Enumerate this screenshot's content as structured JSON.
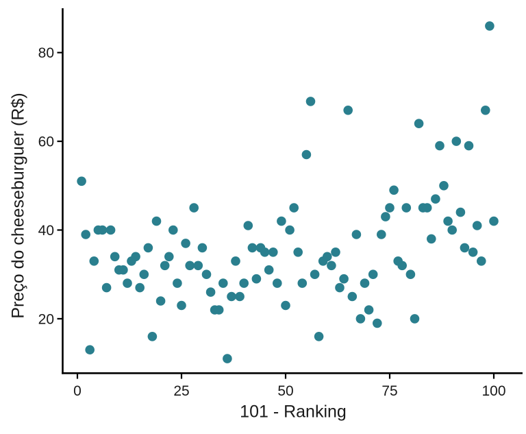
{
  "chart_data": {
    "type": "scatter",
    "title": "",
    "xlabel": "101 - Ranking",
    "ylabel": "Preço do cheeseburguer (R$)",
    "x_ticks": [
      0,
      25,
      50,
      75,
      100
    ],
    "y_ticks": [
      20,
      40,
      60,
      80
    ],
    "xlim": [
      -4,
      107
    ],
    "ylim": [
      8,
      90
    ],
    "grid": "off",
    "legend": "none",
    "point_color": "#2a7f8e",
    "axis_color": "#000000",
    "label_color": "#1a1a1a",
    "x": [
      1,
      2,
      3,
      4,
      5,
      6,
      7,
      8,
      9,
      10,
      11,
      12,
      13,
      14,
      15,
      16,
      17,
      18,
      19,
      20,
      21,
      22,
      23,
      24,
      25,
      26,
      27,
      28,
      29,
      30,
      31,
      32,
      33,
      34,
      35,
      36,
      37,
      38,
      39,
      40,
      41,
      42,
      43,
      44,
      45,
      46,
      47,
      48,
      49,
      50,
      51,
      52,
      53,
      54,
      55,
      56,
      57,
      58,
      59,
      60,
      61,
      62,
      63,
      64,
      65,
      66,
      67,
      68,
      69,
      70,
      71,
      72,
      73,
      74,
      75,
      76,
      77,
      78,
      79,
      80,
      81,
      82,
      83,
      84,
      85,
      86,
      87,
      88,
      89,
      90,
      91,
      92,
      93,
      94,
      95,
      96,
      97,
      98,
      99,
      100
    ],
    "y": [
      51,
      39,
      13,
      33,
      40,
      40,
      27,
      40,
      34,
      31,
      31,
      28,
      33,
      34,
      27,
      30,
      36,
      16,
      42,
      24,
      32,
      34,
      40,
      28,
      23,
      37,
      32,
      45,
      32,
      36,
      30,
      26,
      22,
      22,
      28,
      11,
      25,
      33,
      25,
      28,
      41,
      36,
      29,
      36,
      35,
      31,
      35,
      28,
      42,
      23,
      40,
      45,
      35,
      28,
      57,
      69,
      30,
      16,
      33,
      34,
      32,
      35,
      27,
      29,
      67,
      25,
      39,
      20,
      28,
      22,
      30,
      19,
      39,
      43,
      45,
      49,
      33,
      32,
      45,
      30,
      20,
      64,
      45,
      45,
      38,
      47,
      59,
      50,
      42,
      40,
      60,
      44,
      36,
      59,
      35,
      41,
      33,
      67,
      86,
      42
    ]
  }
}
